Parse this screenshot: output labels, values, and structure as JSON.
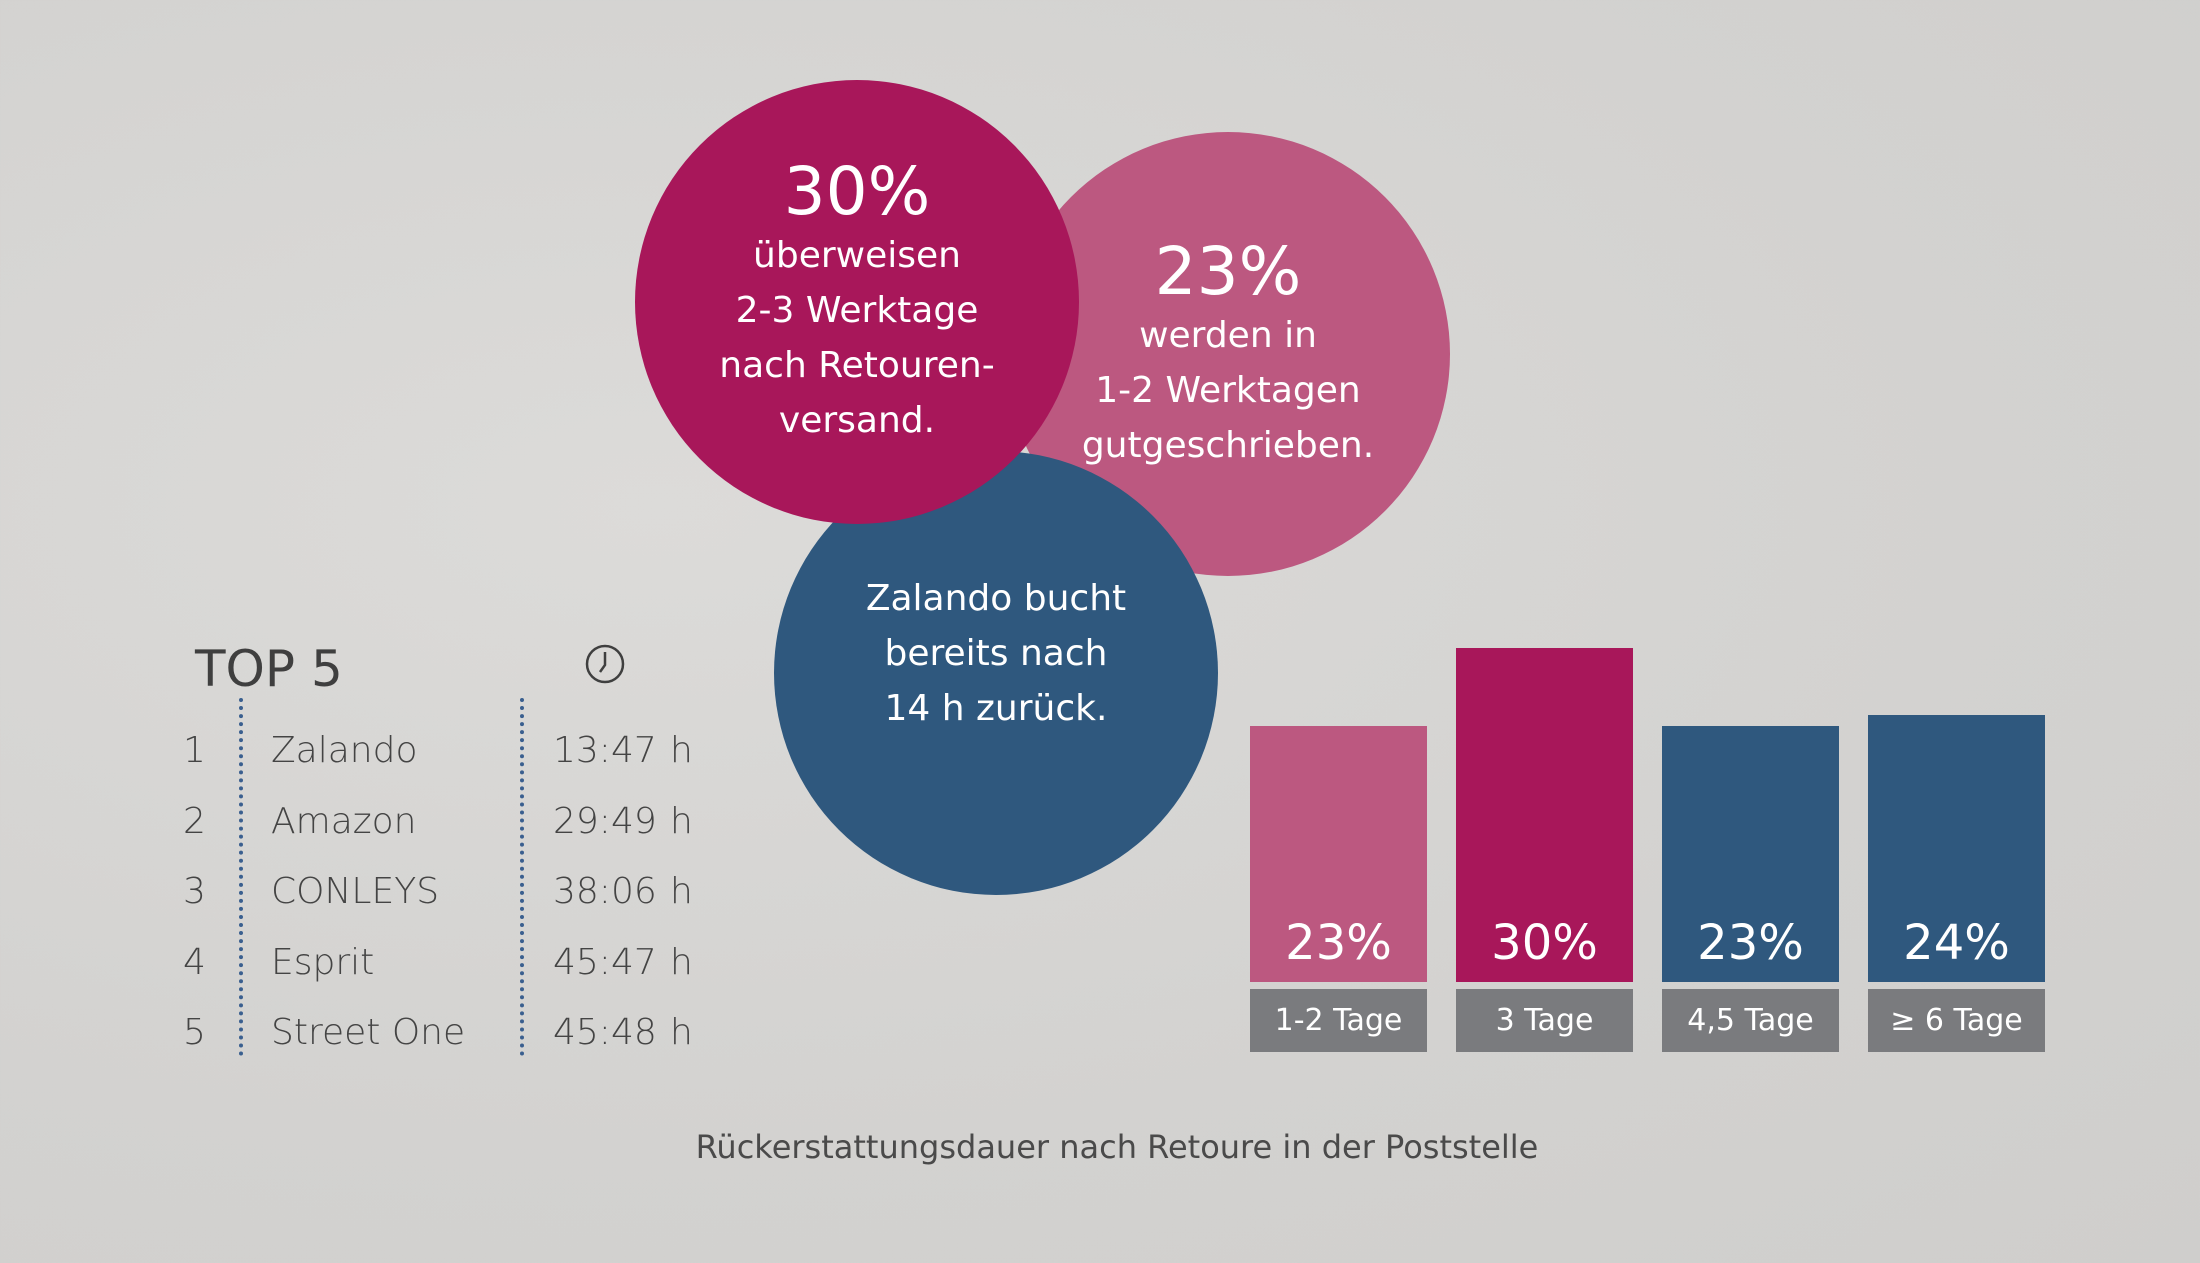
{
  "circles": [
    {
      "value": "30%",
      "text": "überweisen\n2-3 Werktage\nnach Retouren-\nversand.",
      "color": "#a8175a"
    },
    {
      "value": "23%",
      "text": "werden in\n1-2 Werktagen\ngutgeschrieben.",
      "color": "#bc5880"
    },
    {
      "value": "",
      "text": "Zalando bucht\nbereits nach\n14 h zurück.",
      "color": "#2f587e"
    }
  ],
  "top5": {
    "title": "TOP 5",
    "icon": "clock-icon",
    "rows": [
      {
        "rank": "1",
        "name": "Zalando",
        "time": "13:47",
        "unit": "h"
      },
      {
        "rank": "2",
        "name": "Amazon",
        "time": "29:49",
        "unit": "h"
      },
      {
        "rank": "3",
        "name": "CONLEYS",
        "time": "38:06",
        "unit": "h"
      },
      {
        "rank": "4",
        "name": "Esprit",
        "time": "45:47",
        "unit": "h"
      },
      {
        "rank": "5",
        "name": "Street One",
        "time": "45:48",
        "unit": "h"
      }
    ]
  },
  "chart_data": {
    "type": "bar",
    "categories": [
      "1-2 Tage",
      "3 Tage",
      "4,5 Tage",
      "≥ 6 Tage"
    ],
    "values": [
      23,
      30,
      23,
      24
    ],
    "value_labels": [
      "23%",
      "30%",
      "23%",
      "24%"
    ],
    "colors": [
      "#bc5880",
      "#a8175a",
      "#2f587e",
      "#2f587e"
    ],
    "title": "Rückerstattungsdauer nach Retoure in der Poststelle",
    "xlabel": "",
    "ylabel": "",
    "ylim": [
      0,
      30
    ],
    "grid": false
  }
}
